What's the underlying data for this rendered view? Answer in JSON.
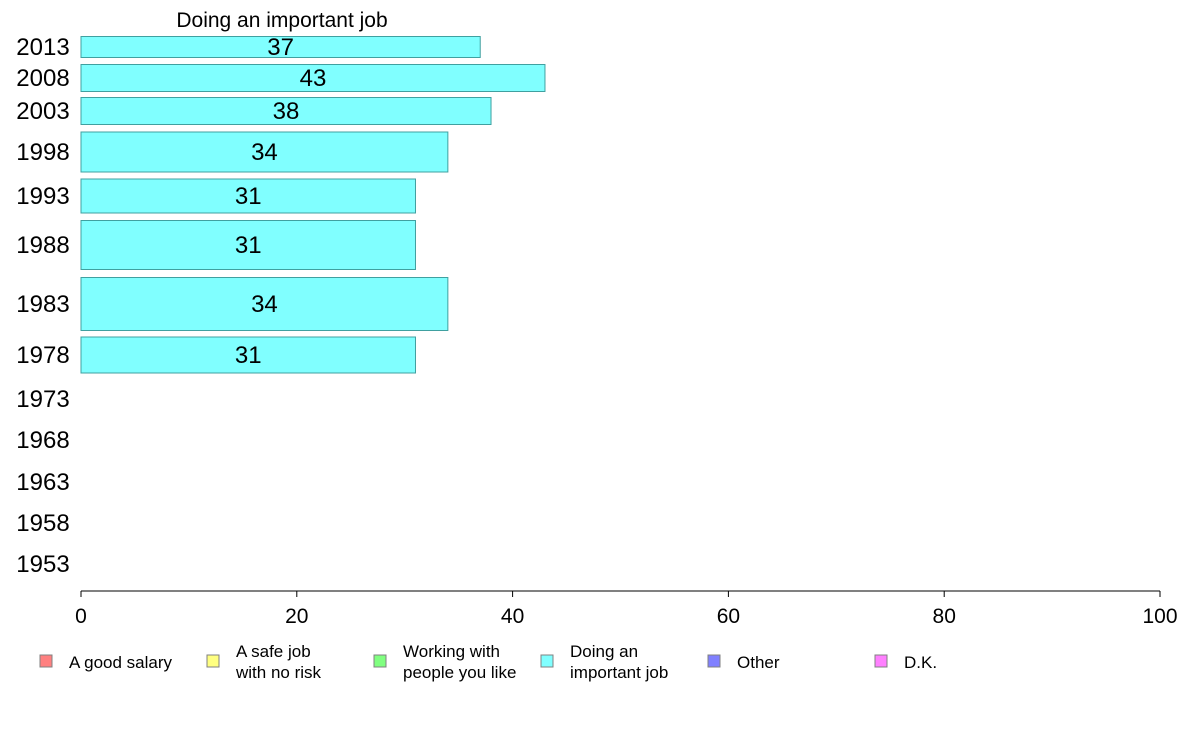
{
  "chart_data": {
    "type": "bar",
    "orientation": "horizontal",
    "title": "Doing an important job",
    "xlabel": "",
    "ylabel": "",
    "xlim": [
      0,
      100
    ],
    "x_ticks": [
      0,
      20,
      40,
      60,
      80,
      100
    ],
    "grid": false,
    "categories": [
      "2013",
      "2008",
      "2003",
      "1998",
      "1993",
      "1988",
      "1983",
      "1978",
      "1973",
      "1968",
      "1963",
      "1958",
      "1953"
    ],
    "series": [
      {
        "values": [
          37,
          43,
          38,
          34,
          31,
          31,
          34,
          31,
          null,
          null,
          null,
          null,
          null
        ],
        "data_labels": [
          "37",
          "43",
          "38",
          "34",
          "31",
          "31",
          "34",
          "31",
          "",
          "",
          "",
          "",
          ""
        ],
        "color": "#80ffff",
        "border_color": "#40a0a0"
      }
    ],
    "legend": {
      "placement": "bottom",
      "items": [
        {
          "lines": [
            "A good salary"
          ],
          "color": "#ff8080"
        },
        {
          "lines": [
            "A safe job",
            "with no risk"
          ],
          "color": "#ffff80"
        },
        {
          "lines": [
            "Working with",
            "people you like"
          ],
          "color": "#80ff80"
        },
        {
          "lines": [
            "Doing an",
            "important job"
          ],
          "color": "#80ffff"
        },
        {
          "lines": [
            "Other"
          ],
          "color": "#8080ff"
        },
        {
          "lines": [
            "D.K."
          ],
          "color": "#ff80ff"
        }
      ]
    }
  }
}
